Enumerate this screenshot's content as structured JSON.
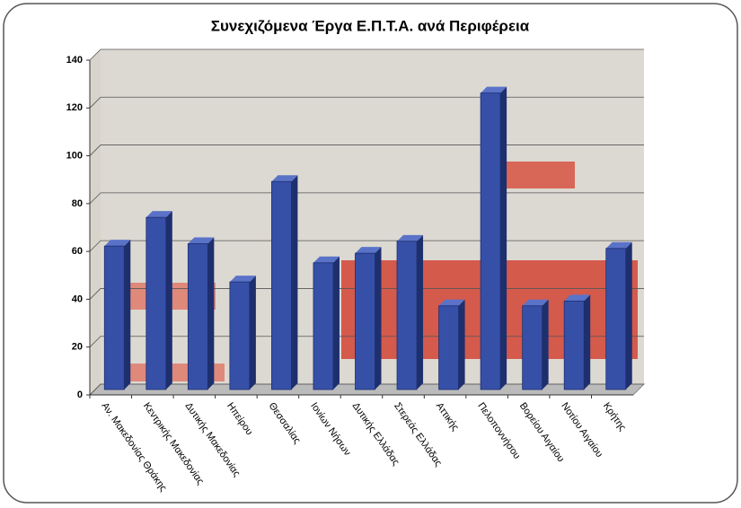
{
  "chart_data": {
    "type": "bar",
    "title": "Συνεχιζόμενα Έργα Ε.Π.Τ.Α. ανά Περιφέρεια",
    "categories": [
      "Αν. Μακεδονίας Θράκης",
      "Κεντρικής Μακεδονίας",
      "Δυτικής Μακεδονίας",
      "Ηπείρου",
      "Θεσσαλίας",
      "Ιονίων Νήσων",
      "Δυτικής Ελλάδας",
      "Στερεάς Ελλάδας",
      "Αττικής",
      "Πελοποννήσου",
      "Βορείου Αιγαίου",
      "Νοτίου Αιγαίου",
      "Κρήτης"
    ],
    "values": [
      60,
      72,
      61,
      45,
      87,
      53,
      57,
      62,
      35,
      124,
      35,
      37,
      59
    ],
    "color": "#3650a8",
    "ylim": [
      0,
      140
    ],
    "yticks": [
      0,
      20,
      40,
      60,
      80,
      100,
      120,
      140
    ],
    "grid": true
  }
}
